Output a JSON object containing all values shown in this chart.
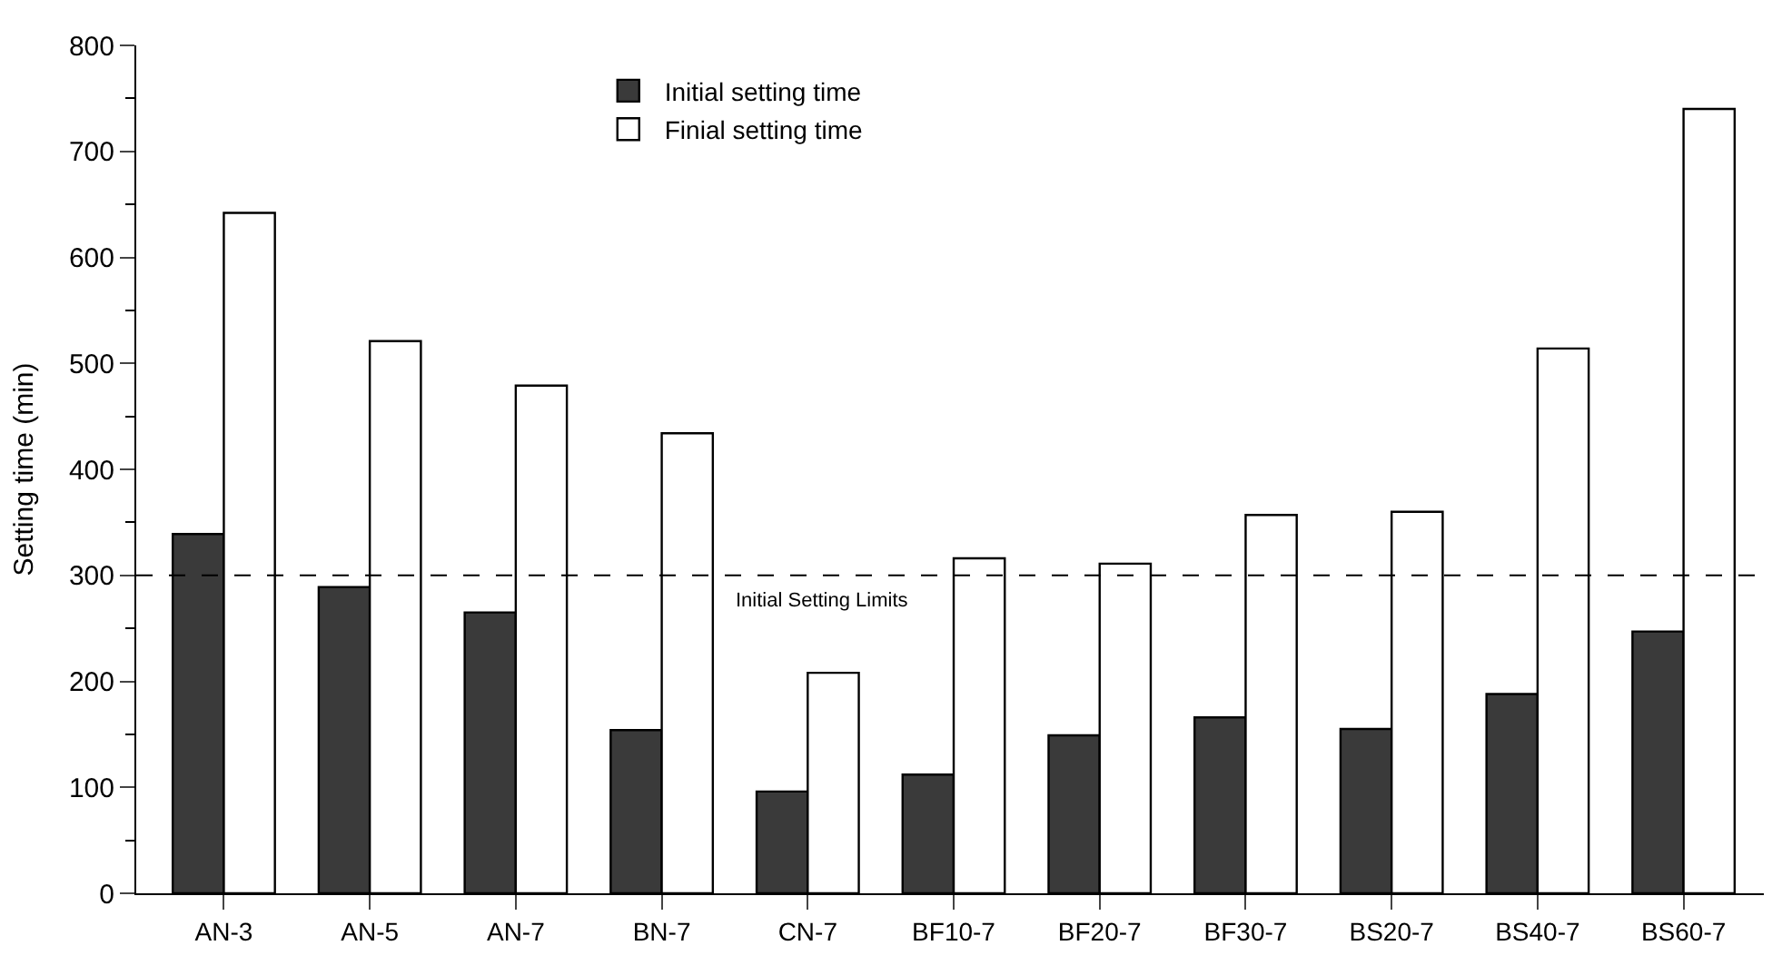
{
  "chart_data": {
    "type": "bar",
    "ylabel": "Setting time (min)",
    "categories": [
      "AN-3",
      "AN-5",
      "AN-7",
      "BN-7",
      "CN-7",
      "BF10-7",
      "BF20-7",
      "BF30-7",
      "BS20-7",
      "BS40-7",
      "BS60-7"
    ],
    "series": [
      {
        "name": "Initial setting time",
        "color": "#3a3a3a",
        "values": [
          339,
          289,
          265,
          154,
          96,
          112,
          149,
          166,
          155,
          188,
          247
        ]
      },
      {
        "name": "Finial setting time",
        "color": "#ffffff",
        "values": [
          642,
          521,
          479,
          434,
          208,
          316,
          311,
          357,
          360,
          514,
          740
        ]
      }
    ],
    "ylim": [
      0,
      800
    ],
    "yticks": [
      0,
      100,
      200,
      300,
      400,
      500,
      600,
      700,
      800
    ],
    "ref_lines": [
      {
        "axis": "y",
        "value": 300,
        "label": "Initial Setting Limits",
        "line_style": "dashed",
        "color": "#000000"
      }
    ],
    "legend": "top"
  }
}
